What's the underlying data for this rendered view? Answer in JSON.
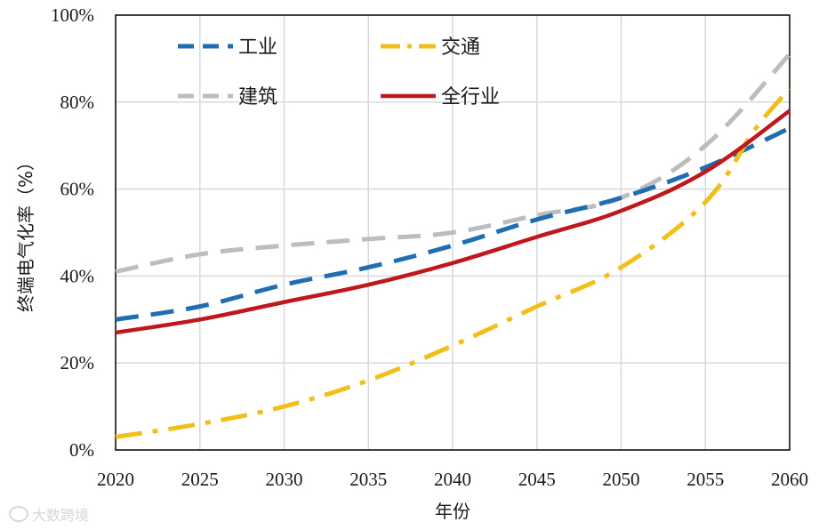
{
  "chart_data": {
    "type": "line",
    "title": "",
    "xlabel": "年份",
    "ylabel": "终端电气化率（%）",
    "xlim": [
      2020,
      2060
    ],
    "ylim": [
      0,
      100
    ],
    "x_ticks": [
      2020,
      2025,
      2030,
      2035,
      2040,
      2045,
      2050,
      2055,
      2060
    ],
    "x_tick_labels": [
      "2020",
      "2025",
      "2030",
      "2035",
      "2040",
      "2045",
      "2050",
      "2055",
      "2060"
    ],
    "y_ticks": [
      0,
      20,
      40,
      60,
      80,
      100
    ],
    "y_tick_labels": [
      "0%",
      "20%",
      "40%",
      "60%",
      "80%",
      "100%"
    ],
    "grid": true,
    "legend_position": "top-left",
    "series": [
      {
        "name": "工业",
        "color": "#1f6db3",
        "style": "dashed",
        "x": [
          2020,
          2025,
          2030,
          2035,
          2040,
          2045,
          2050,
          2055,
          2060
        ],
        "values": [
          30,
          33,
          38,
          42,
          47,
          53,
          58,
          65,
          74
        ]
      },
      {
        "name": "交通",
        "color": "#f2bf1a",
        "style": "dashdot",
        "x": [
          2020,
          2025,
          2030,
          2035,
          2040,
          2045,
          2050,
          2055,
          2058,
          2060
        ],
        "values": [
          3,
          6,
          10,
          16,
          24,
          33,
          42,
          57,
          74,
          83
        ]
      },
      {
        "name": "建筑",
        "color": "#bdbdbd",
        "style": "dashed",
        "x": [
          2020,
          2025,
          2030,
          2035,
          2040,
          2045,
          2050,
          2055,
          2060
        ],
        "values": [
          41,
          45,
          47,
          48.5,
          50,
          54,
          58,
          70,
          91
        ]
      },
      {
        "name": "全行业",
        "color": "#c0171c",
        "style": "solid",
        "x": [
          2020,
          2025,
          2030,
          2035,
          2040,
          2045,
          2050,
          2055,
          2060
        ],
        "values": [
          27,
          30,
          34,
          38,
          43,
          49,
          55,
          64,
          78
        ]
      }
    ]
  },
  "watermark": {
    "text": "大数跨境"
  }
}
